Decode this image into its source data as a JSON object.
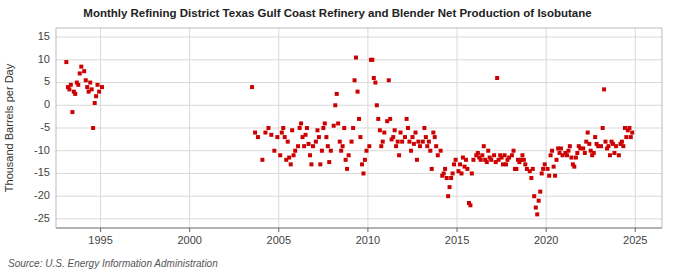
{
  "chart_data": {
    "type": "scatter",
    "title": "Monthly Refining District Texas Gulf Coast Refinery and Blender Net Production of Isobutane",
    "y_label": "Thousand Barrels per Day",
    "annotations": [
      "Source: U.S. Energy Information Administration"
    ],
    "color": "#CC0000",
    "marker": "square",
    "grid": true,
    "xlim": [
      1992.5,
      2026.5
    ],
    "ylim": [
      -27,
      17
    ],
    "xticks": [
      1995,
      2000,
      2005,
      2010,
      2015,
      2020,
      2025
    ],
    "yticks": [
      -25,
      -20,
      -15,
      -10,
      -5,
      0,
      5,
      10,
      15
    ],
    "x": [
      1993.08,
      1993.17,
      1993.25,
      1993.33,
      1993.42,
      1993.5,
      1993.58,
      1993.67,
      1993.75,
      1993.83,
      1993.92,
      1994.08,
      1994.17,
      1994.25,
      1994.33,
      1994.42,
      1994.5,
      1994.58,
      1994.67,
      1994.75,
      1994.83,
      1994.92,
      1995.08,
      2003.5,
      2003.67,
      2003.83,
      2004.08,
      2004.25,
      2004.42,
      2004.58,
      2004.75,
      2004.92,
      2005.08,
      2005.17,
      2005.25,
      2005.33,
      2005.42,
      2005.5,
      2005.58,
      2005.67,
      2005.75,
      2005.83,
      2005.92,
      2006.08,
      2006.17,
      2006.25,
      2006.33,
      2006.42,
      2006.5,
      2006.58,
      2006.67,
      2006.75,
      2006.83,
      2006.92,
      2007.08,
      2007.17,
      2007.25,
      2007.33,
      2007.42,
      2007.5,
      2007.58,
      2007.67,
      2007.75,
      2007.83,
      2007.92,
      2008.08,
      2008.17,
      2008.25,
      2008.33,
      2008.42,
      2008.5,
      2008.58,
      2008.67,
      2008.75,
      2008.83,
      2008.92,
      2009.08,
      2009.17,
      2009.25,
      2009.33,
      2009.42,
      2009.5,
      2009.58,
      2009.67,
      2009.75,
      2009.83,
      2009.92,
      2010.08,
      2010.17,
      2010.25,
      2010.33,
      2010.42,
      2010.5,
      2010.58,
      2010.67,
      2010.75,
      2010.83,
      2010.92,
      2011.08,
      2011.17,
      2011.25,
      2011.33,
      2011.42,
      2011.5,
      2011.58,
      2011.67,
      2011.75,
      2011.83,
      2011.92,
      2012.08,
      2012.17,
      2012.25,
      2012.33,
      2012.42,
      2012.5,
      2012.58,
      2012.67,
      2012.75,
      2012.83,
      2012.92,
      2013.08,
      2013.17,
      2013.25,
      2013.33,
      2013.42,
      2013.5,
      2013.58,
      2013.67,
      2013.75,
      2013.83,
      2013.92,
      2014.08,
      2014.17,
      2014.25,
      2014.33,
      2014.42,
      2014.5,
      2014.58,
      2014.67,
      2014.75,
      2014.83,
      2014.92,
      2015.08,
      2015.17,
      2015.25,
      2015.33,
      2015.42,
      2015.5,
      2015.58,
      2015.67,
      2015.75,
      2015.83,
      2015.92,
      2016.08,
      2016.17,
      2016.25,
      2016.33,
      2016.42,
      2016.5,
      2016.58,
      2016.67,
      2016.75,
      2016.83,
      2016.92,
      2017.08,
      2017.17,
      2017.25,
      2017.33,
      2017.42,
      2017.5,
      2017.58,
      2017.67,
      2017.75,
      2017.83,
      2017.92,
      2018.08,
      2018.17,
      2018.25,
      2018.33,
      2018.42,
      2018.5,
      2018.58,
      2018.67,
      2018.75,
      2018.83,
      2018.92,
      2019.08,
      2019.17,
      2019.25,
      2019.33,
      2019.42,
      2019.5,
      2019.58,
      2019.67,
      2019.75,
      2019.83,
      2019.92,
      2020.08,
      2020.17,
      2020.25,
      2020.33,
      2020.42,
      2020.5,
      2020.58,
      2020.67,
      2020.75,
      2020.83,
      2020.92,
      2021.08,
      2021.17,
      2021.25,
      2021.33,
      2021.42,
      2021.5,
      2021.58,
      2021.67,
      2021.75,
      2021.83,
      2021.92,
      2022.08,
      2022.17,
      2022.25,
      2022.33,
      2022.42,
      2022.5,
      2022.58,
      2022.67,
      2022.75,
      2022.83,
      2022.92,
      2023.08,
      2023.17,
      2023.25,
      2023.33,
      2023.42,
      2023.5,
      2023.58,
      2023.67,
      2023.75,
      2023.83,
      2023.92,
      2024.08,
      2024.17,
      2024.25,
      2024.33,
      2024.42,
      2024.5,
      2024.58,
      2024.67,
      2024.75,
      2024.83
    ],
    "values": [
      9.5,
      4.0,
      3.5,
      4.5,
      -1.5,
      3.0,
      2.5,
      5.0,
      4.5,
      7.0,
      8.5,
      7.5,
      5.5,
      4.0,
      3.0,
      5.0,
      3.5,
      -5.0,
      0.5,
      2.0,
      4.5,
      3.0,
      4.0,
      4.0,
      -6.0,
      -7.0,
      -12.0,
      -6.0,
      -5.0,
      -6.5,
      -10.0,
      -7.0,
      -11.0,
      -6.0,
      -5.0,
      -7.0,
      -12.0,
      -8.0,
      -11.5,
      -13.0,
      -5.5,
      -11.0,
      -10.0,
      -9.0,
      -5.0,
      -4.0,
      -7.0,
      -9.0,
      -6.5,
      -5.0,
      -8.5,
      -11.0,
      -13.0,
      -9.0,
      -8.0,
      -5.5,
      -7.0,
      -13.0,
      -10.0,
      -5.0,
      -4.0,
      -7.0,
      -9.0,
      -12.5,
      -10.0,
      -4.5,
      0.0,
      2.5,
      -4.0,
      -8.0,
      -10.0,
      -9.0,
      -5.0,
      -12.0,
      -14.0,
      -11.0,
      -8.0,
      -5.0,
      5.5,
      10.5,
      3.0,
      -3.0,
      -7.0,
      -13.0,
      -15.0,
      -12.0,
      -10.0,
      -9.0,
      10.0,
      10.0,
      6.0,
      5.0,
      0.0,
      -3.0,
      -5.5,
      -9.0,
      -8.0,
      -6.0,
      -3.5,
      5.5,
      -3.0,
      -7.5,
      -7.0,
      -5.5,
      -9.0,
      -8.0,
      -11.0,
      -6.0,
      -8.0,
      -7.0,
      -3.0,
      -5.0,
      -8.0,
      -10.0,
      -7.0,
      -8.5,
      -6.0,
      -12.0,
      -8.0,
      -9.0,
      -8.0,
      -5.0,
      -7.0,
      -9.0,
      -8.0,
      -10.0,
      -14.0,
      -6.0,
      -7.0,
      -9.0,
      -11.0,
      -10.0,
      -15.5,
      -15.0,
      -14.0,
      -16.0,
      -20.0,
      -18.0,
      -16.0,
      -15.0,
      -13.0,
      -12.0,
      -14.5,
      -13.0,
      -15.0,
      -11.5,
      -13.5,
      -12.0,
      -14.0,
      -21.5,
      -22.0,
      -15.0,
      -12.0,
      -11.0,
      -10.5,
      -11.5,
      -12.0,
      -11.0,
      -9.0,
      -12.0,
      -12.5,
      -10.0,
      -11.5,
      -12.0,
      -11.0,
      -12.5,
      6.0,
      -12.0,
      -11.0,
      -11.5,
      -13.0,
      -11.0,
      -13.0,
      -12.0,
      -11.5,
      -11.0,
      -10.0,
      -14.0,
      -14.0,
      -12.0,
      -12.5,
      -12.0,
      -11.0,
      -12.0,
      -13.0,
      -14.0,
      -14.5,
      -16.0,
      -14.0,
      -20.0,
      -22.5,
      -24.0,
      -21.0,
      -19.0,
      -15.0,
      -14.0,
      -13.0,
      -14.0,
      -15.5,
      -11.0,
      -10.0,
      -13.5,
      -15.5,
      -12.0,
      -9.5,
      -10.5,
      -9.5,
      -11.0,
      -10.5,
      -11.0,
      -10.0,
      -9.0,
      -11.5,
      -13.0,
      -13.5,
      -11.5,
      -10.5,
      -9.0,
      -9.5,
      -9.5,
      -10.5,
      -8.0,
      -6.0,
      -8.5,
      -10.0,
      -11.0,
      -10.5,
      -7.0,
      -8.5,
      -9.0,
      -9.0,
      -5.0,
      3.5,
      -8.0,
      -9.5,
      -9.0,
      -11.0,
      -8.0,
      -8.5,
      -10.5,
      -9.0,
      -11.0,
      -8.5,
      -8.0,
      -9.0,
      -5.0,
      -7.0,
      -5.5,
      -5.0,
      -7.0,
      -6.0
    ]
  }
}
